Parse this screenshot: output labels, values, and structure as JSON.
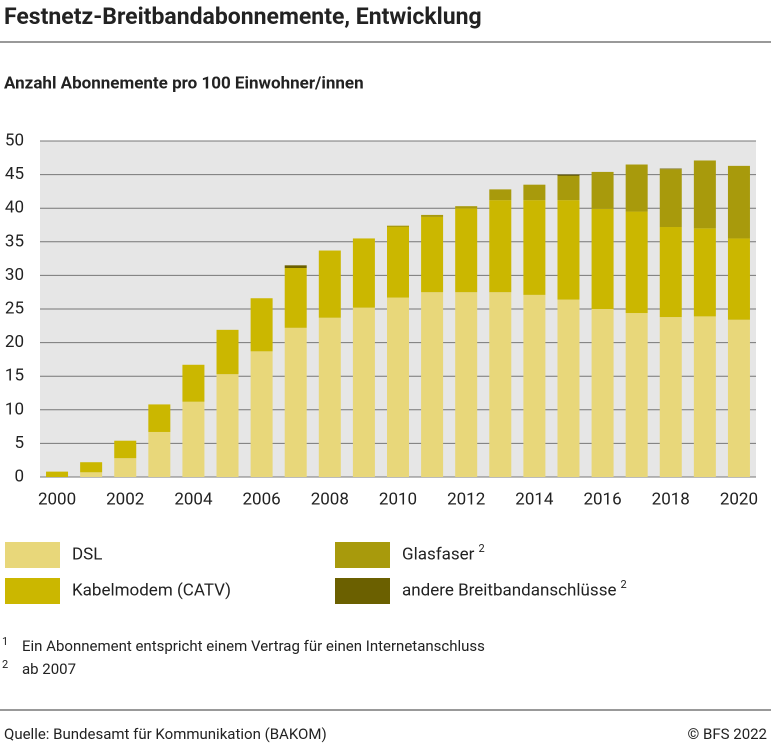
{
  "chart_data": {
    "type": "stacked_bar",
    "title": "Festnetz-Breitbandabonnemente, Entwicklung",
    "subtitle": "Anzahl Abonnemente pro 100 Einwohner/innen",
    "categories": [
      "2000",
      null,
      "2002",
      null,
      "2004",
      null,
      "2006",
      null,
      "2008",
      null,
      "2010",
      null,
      "2012",
      null,
      "2014",
      null,
      "2016",
      null,
      "2018",
      null,
      "2020"
    ],
    "series": [
      {
        "name": "DSL",
        "color": "#e8d77a",
        "values": [
          0,
          0.7,
          2.8,
          6.7,
          11.2,
          15.3,
          18.7,
          22.2,
          23.7,
          25.2,
          26.7,
          27.5,
          27.5,
          27.5,
          27.1,
          26.4,
          25.0,
          24.4,
          23.8,
          23.9,
          23.4
        ]
      },
      {
        "name": "Kabelmodem (CATV)",
        "color": "#cbb700",
        "values": [
          0.8,
          1.5,
          2.6,
          4.1,
          5.5,
          6.6,
          7.9,
          8.9,
          10.0,
          10.3,
          10.5,
          11.2,
          12.5,
          13.7,
          14.1,
          14.8,
          14.9,
          15.1,
          13.4,
          13.1,
          12.1
        ]
      },
      {
        "name": "Glasfaser",
        "note": "2",
        "color": "#a89a0c",
        "values": [
          null,
          null,
          null,
          null,
          null,
          null,
          null,
          0,
          0,
          0,
          0.2,
          0.3,
          0.3,
          1.6,
          2.3,
          3.6,
          5.5,
          7.0,
          8.6,
          10.1,
          10.8
        ]
      },
      {
        "name": "andere Breitbandanschlüsse",
        "note": "2",
        "color": "#6b6000",
        "values": [
          null,
          null,
          null,
          null,
          null,
          null,
          null,
          0.4,
          0,
          0,
          0,
          0,
          0,
          0,
          0,
          0.2,
          0,
          0,
          0.1,
          0,
          0
        ]
      }
    ],
    "ylim": [
      0,
      50
    ],
    "yticks": [
      0,
      5,
      10,
      15,
      20,
      25,
      30,
      35,
      40,
      45,
      50
    ],
    "grid": true,
    "footnotes": [
      {
        "mark": "1",
        "text": "Ein Abonnement entspricht einem Vertrag für einen Internetanschluss"
      },
      {
        "mark": "2",
        "text": "ab 2007"
      }
    ],
    "source": "Quelle: Bundesamt für Kommunikation (BAKOM)",
    "copyright": "© BFS 2022"
  }
}
